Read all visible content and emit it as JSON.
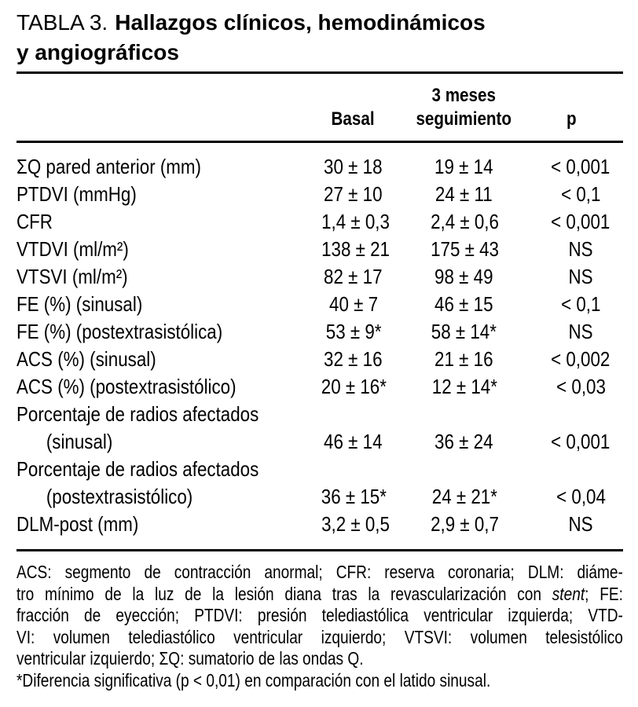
{
  "colors": {
    "background": "#ffffff",
    "text": "#000000",
    "rule": "#000000"
  },
  "title": {
    "label": "TABLA 3.",
    "line1_bold": "Hallazgos clínicos, hemodinámicos",
    "line2_bold": "y angiográficos"
  },
  "header": {
    "basal": "Basal",
    "followup_line1": "3 meses",
    "followup_line2": "seguimiento",
    "p": "p"
  },
  "rows": [
    {
      "label": "ΣQ pared anterior (mm)",
      "basal": "30 ± 18",
      "seguimiento": "19 ± 14",
      "p": "< 0,001"
    },
    {
      "label": "PTDVI (mmHg)",
      "basal": "27 ± 10",
      "seguimiento": "24 ± 11",
      "p": "< 0,1"
    },
    {
      "label": "CFR",
      "basal": "1,4 ± 0,3",
      "seguimiento": "2,4 ± 0,6",
      "p": "< 0,001"
    },
    {
      "label": "VTDVI (ml/m²)",
      "basal": "138 ± 21",
      "seguimiento": "175 ± 43",
      "p": "NS"
    },
    {
      "label": "VTSVI (ml/m²)",
      "basal": "82 ± 17",
      "seguimiento": "98 ± 49",
      "p": "NS"
    },
    {
      "label": "FE (%) (sinusal)",
      "basal": "40 ± 7",
      "seguimiento": "46 ± 15",
      "p": "< 0,1"
    },
    {
      "label": "FE (%) (postextrasistólica)",
      "basal": "53 ± 9*",
      "seguimiento": "58 ± 14*",
      "p": "NS"
    },
    {
      "label": "ACS (%) (sinusal)",
      "basal": "32 ± 16",
      "seguimiento": "21 ± 16",
      "p": "< 0,002"
    },
    {
      "label": "ACS (%) (postextrasistólico)",
      "basal": "20 ± 16*",
      "seguimiento": "12 ± 14*",
      "p": "< 0,03"
    },
    {
      "label_line1": "Porcentaje de radios afectados",
      "label_line2": "(sinusal)",
      "basal": "46 ± 14",
      "seguimiento": "36 ± 24",
      "p": "< 0,001"
    },
    {
      "label_line1": "Porcentaje de radios afectados",
      "label_line2": "(postextrasistólico)",
      "basal": "36 ± 15*",
      "seguimiento": "24 ± 21*",
      "p": "< 0,04"
    },
    {
      "label": "DLM-post (mm)",
      "basal": "3,2 ± 0,5",
      "seguimiento": "2,9 ± 0,7",
      "p": "NS"
    }
  ],
  "footnote": {
    "lines": [
      {
        "text": "ACS: segmento de contracción anormal; CFR: reserva coronaria; DLM: diáme-"
      },
      {
        "pre": "tro mínimo de la luz de la lesión diana tras la revascularización con ",
        "italic": "stent",
        "post": "; FE:"
      },
      {
        "text": "fracción de eyección; PTDVI: presión telediastólica ventricular izquierda; VTD-"
      },
      {
        "text": "VI: volumen telediastólico ventricular izquierdo; VTSVI: volumen telesistólico"
      },
      {
        "text": "ventricular izquierdo; ΣQ: sumatorio de las ondas Q."
      }
    ],
    "significance": "*Diferencia significativa (p < 0,01) en comparación con el latido sinusal."
  }
}
